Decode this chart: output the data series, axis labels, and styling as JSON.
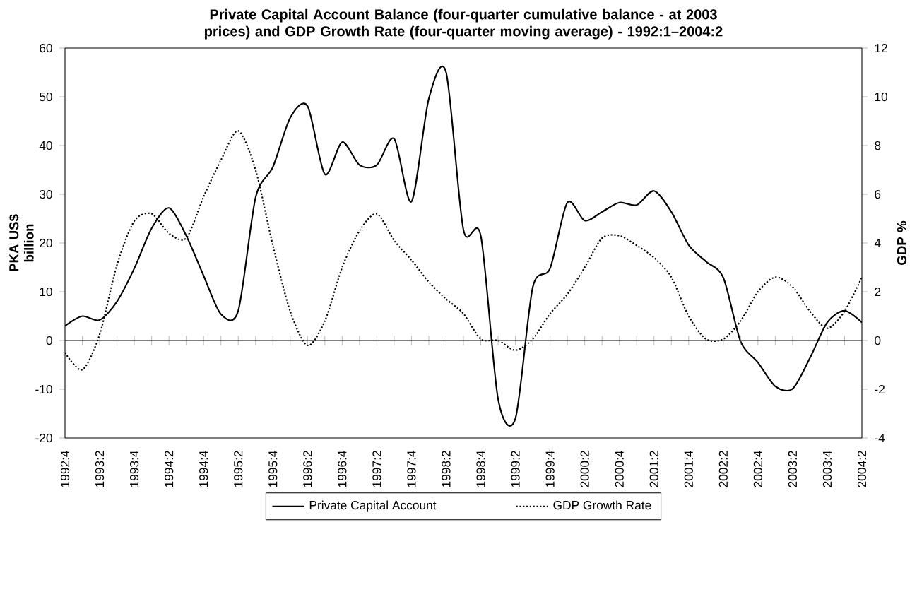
{
  "chart_data": {
    "type": "line",
    "title": "Private Capital Account Balance (four-quarter cumulative balance - at 2003 prices) and GDP Growth Rate (four-quarter moving average) - 1992:1–2004:2",
    "categories": [
      "1992:4",
      null,
      "1993:2",
      null,
      "1993:4",
      null,
      "1994:2",
      null,
      "1994:4",
      null,
      "1995:2",
      null,
      "1995:4",
      null,
      "1996:2",
      null,
      "1996:4",
      null,
      "1997:2",
      null,
      "1997:4",
      null,
      "1998:2",
      null,
      "1998:4",
      null,
      "1999:2",
      null,
      "1999:4",
      null,
      "2000:2",
      null,
      "2000:4",
      null,
      "2001:2",
      null,
      "2001:4",
      null,
      "2002:2",
      null,
      "2002:4",
      null,
      "2003:2",
      null,
      "2003:4",
      null,
      "2004:2"
    ],
    "series": [
      {
        "name": "Private Capital Account",
        "color": "#000000",
        "line_style": "solid",
        "values": [
          3.0,
          5.0,
          4.2,
          8.0,
          14.8,
          23,
          27.2,
          21.5,
          13.3,
          5.4,
          6.1,
          29.3,
          35.6,
          45.7,
          48.1,
          34.1,
          40.7,
          36,
          36,
          41.4,
          28.5,
          49.6,
          55,
          22.7,
          21.5,
          -12,
          -16,
          10.9,
          14.8,
          28.3,
          24.6,
          26.4,
          28.3,
          27.8,
          30.7,
          26.4,
          19.6,
          16.2,
          12.9,
          -0.2,
          -4.5,
          -9.4,
          -9.9,
          -3.6,
          3.7,
          6.1,
          3.7
        ]
      },
      {
        "name": "GDP Growth Rate",
        "color": "#000000",
        "line_style": "dotted",
        "axis": "y2",
        "values": [
          -0.5,
          -1.2,
          0.25,
          3.1,
          4.9,
          5.2,
          4.4,
          4.2,
          5.9,
          7.4,
          8.6,
          7.0,
          3.9,
          1.2,
          -0.2,
          0.8,
          3.0,
          4.5,
          5.2,
          4.1,
          3.3,
          2.4,
          1.7,
          1.1,
          0.06,
          0,
          -0.4,
          0.06,
          1.1,
          1.9,
          3.0,
          4.2,
          4.3,
          3.9,
          3.4,
          2.6,
          1.0,
          0.06,
          0.06,
          0.8,
          2.0,
          2.6,
          2.2,
          1.2,
          0.5,
          1.2,
          2.6
        ]
      }
    ],
    "ylabel": "PKA US$ billion",
    "y2label": "GDP %",
    "ylim": [
      -20,
      60
    ],
    "yticks": [
      -20,
      -10,
      0,
      10,
      20,
      30,
      40,
      50,
      60
    ],
    "y2lim": [
      -4,
      12
    ],
    "y2ticks": [
      -4,
      -2,
      0,
      2,
      4,
      6,
      8,
      10,
      12
    ],
    "legend": "bottom"
  }
}
